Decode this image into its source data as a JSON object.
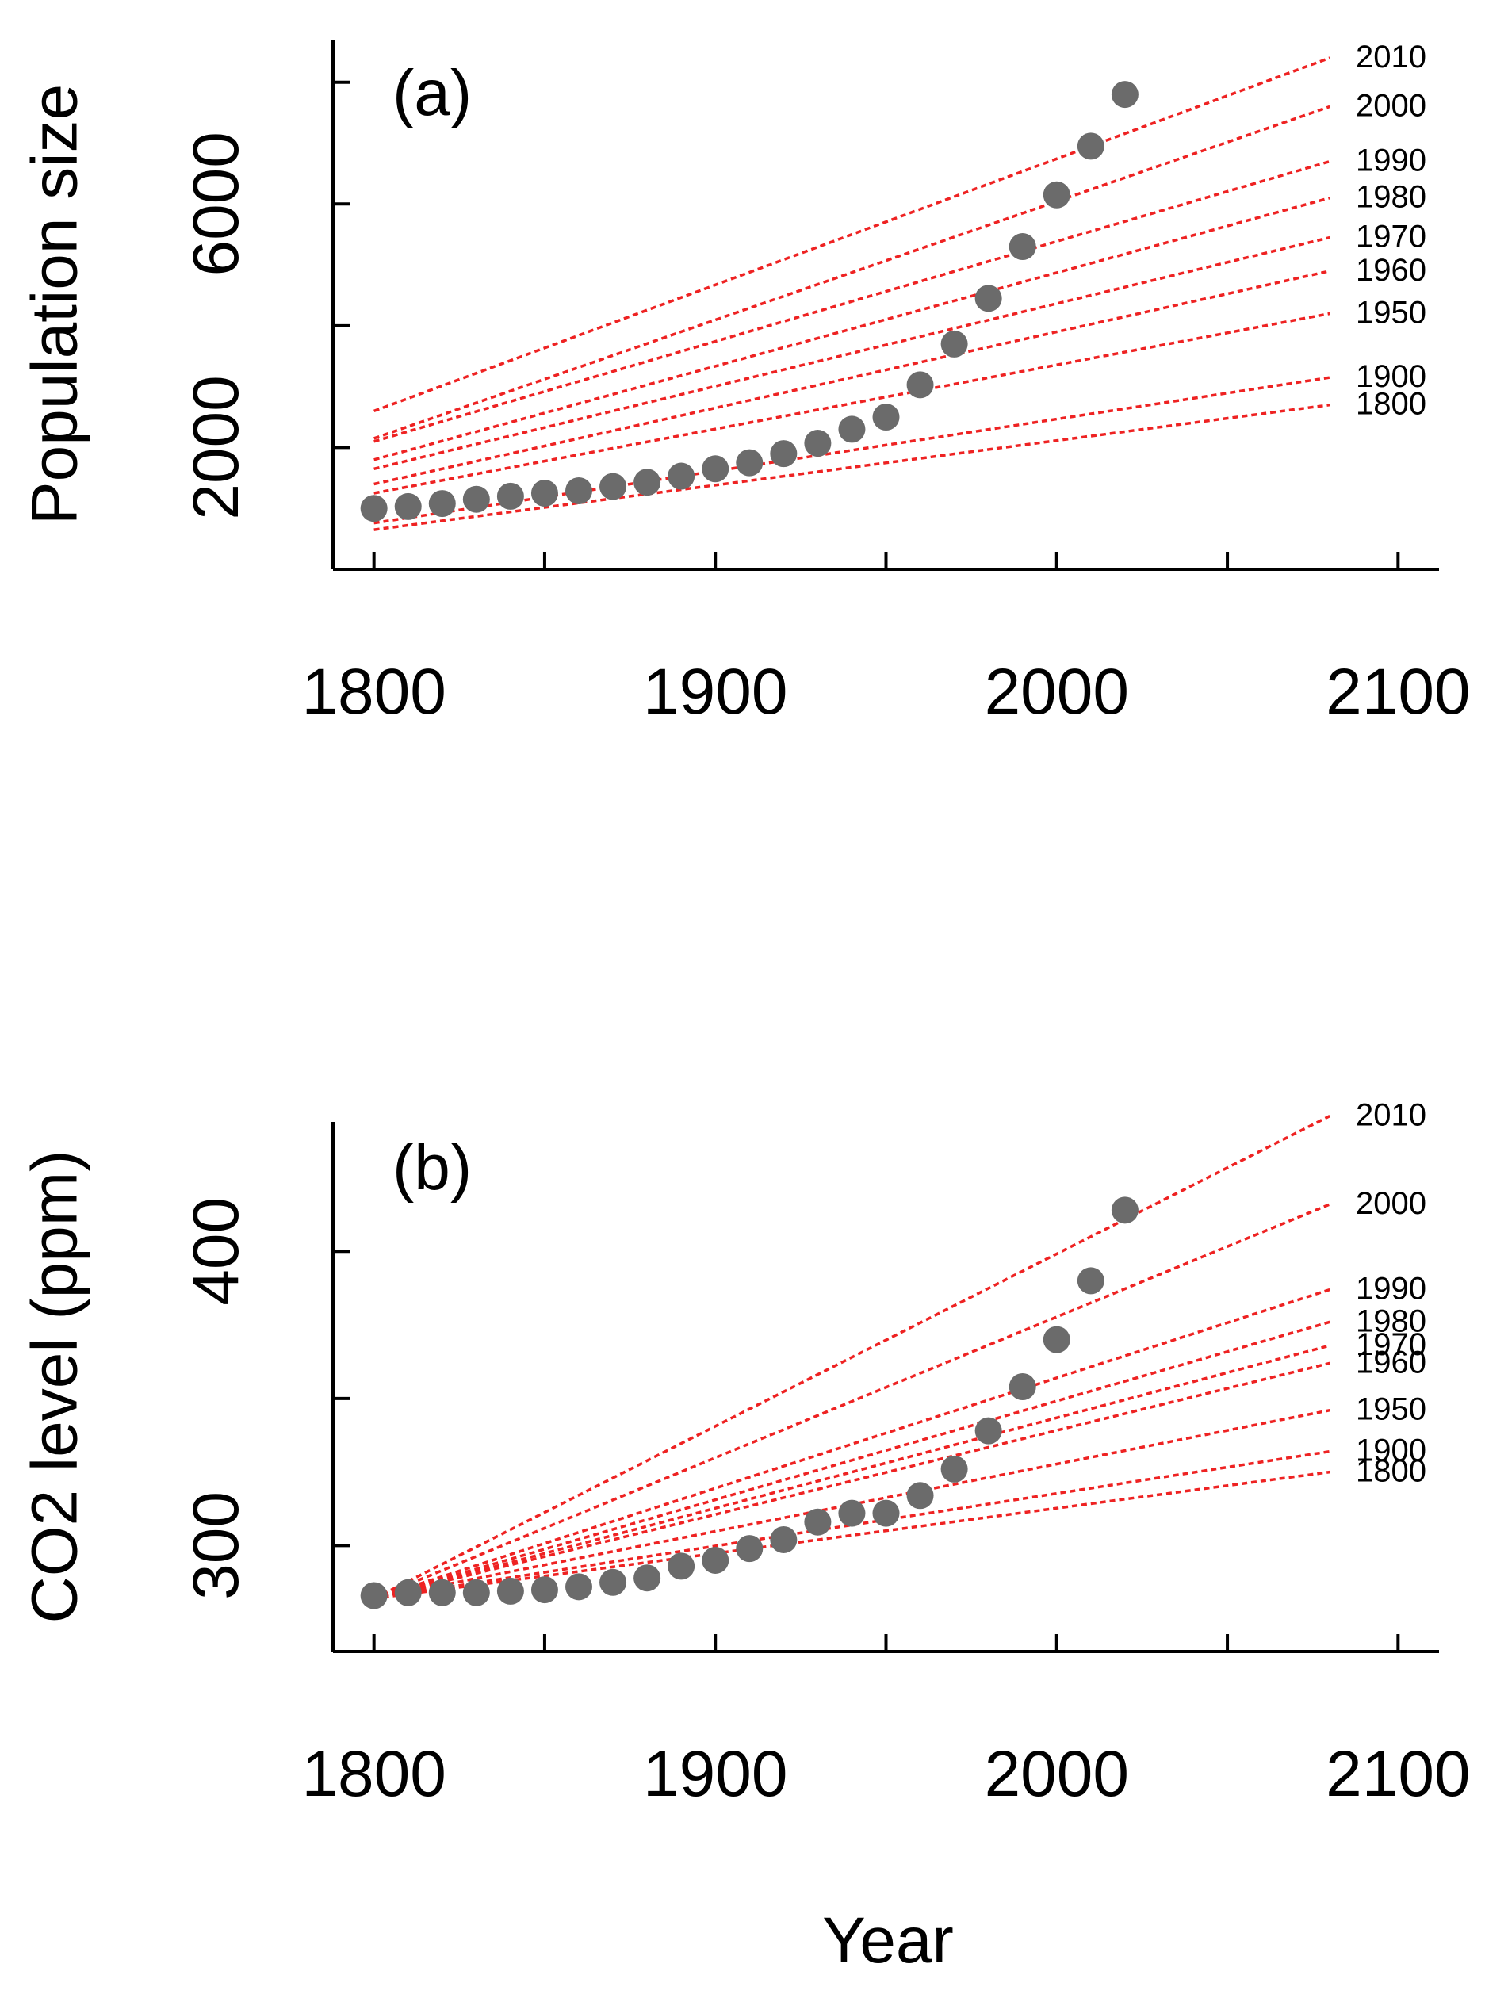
{
  "colors": {
    "points": "#6b6b6b",
    "projections": "#ee2222",
    "axes": "#000000"
  },
  "xlabel": "Year",
  "chart_data": [
    {
      "type": "scatter",
      "panel_label": "(a)",
      "ylabel": "Population size",
      "xlim": [
        1788,
        2112
      ],
      "ylim": [
        0,
        8700
      ],
      "x_ticks": [
        1800,
        1900,
        2000,
        2100
      ],
      "x_minor_ticks": [
        1850,
        1950,
        2050
      ],
      "y_ticks": [
        2000,
        4000,
        6000,
        8000
      ],
      "y_tick_labels": [
        "2000",
        "",
        "6000",
        ""
      ],
      "points": {
        "x": [
          1800,
          1810,
          1820,
          1830,
          1840,
          1850,
          1860,
          1870,
          1880,
          1890,
          1900,
          1910,
          1920,
          1930,
          1940,
          1950,
          1960,
          1970,
          1980,
          1990,
          2000,
          2010,
          2020
        ],
        "y": [
          1000,
          1030,
          1080,
          1150,
          1200,
          1250,
          1290,
          1360,
          1430,
          1530,
          1650,
          1750,
          1900,
          2070,
          2300,
          2500,
          3030,
          3700,
          4450,
          5300,
          6150,
          6950,
          7800
        ]
      },
      "projections": [
        {
          "name": "1800",
          "x0": 1800,
          "y0": 650,
          "x1": 2080,
          "y1": 2700
        },
        {
          "name": "1900",
          "x0": 1800,
          "y0": 760,
          "x1": 2080,
          "y1": 3150
        },
        {
          "name": "1950",
          "x0": 1800,
          "y0": 1250,
          "x1": 2080,
          "y1": 4200
        },
        {
          "name": "1960",
          "x0": 1800,
          "y0": 1400,
          "x1": 2080,
          "y1": 4900
        },
        {
          "name": "1970",
          "x0": 1800,
          "y0": 1650,
          "x1": 2080,
          "y1": 5450
        },
        {
          "name": "1980",
          "x0": 1800,
          "y0": 1800,
          "x1": 2080,
          "y1": 6100
        },
        {
          "name": "1990",
          "x0": 1800,
          "y0": 2100,
          "x1": 2080,
          "y1": 6700
        },
        {
          "name": "2000",
          "x0": 1800,
          "y0": 2150,
          "x1": 2080,
          "y1": 7600
        },
        {
          "name": "2010",
          "x0": 1800,
          "y0": 2600,
          "x1": 2080,
          "y1": 8400
        }
      ]
    },
    {
      "type": "scatter",
      "panel_label": "(b)",
      "ylabel": "CO2 level (ppm)",
      "xlim": [
        1788,
        2112
      ],
      "ylim": [
        264,
        444
      ],
      "x_ticks": [
        1800,
        1900,
        2000,
        2100
      ],
      "x_minor_ticks": [
        1850,
        1950,
        2050
      ],
      "y_ticks": [
        300,
        350,
        400
      ],
      "y_tick_labels": [
        "300",
        "",
        "400"
      ],
      "points": {
        "x": [
          1800,
          1810,
          1820,
          1830,
          1840,
          1850,
          1860,
          1870,
          1880,
          1890,
          1900,
          1910,
          1920,
          1930,
          1940,
          1950,
          1960,
          1970,
          1980,
          1990,
          2000,
          2010,
          2020
        ],
        "y": [
          283,
          284,
          284,
          284,
          284.5,
          285,
          286,
          287.5,
          289,
          293,
          295,
          299,
          302,
          308,
          311,
          311,
          317,
          326,
          339,
          354,
          370,
          390,
          414
        ]
      },
      "projections": [
        {
          "name": "1800",
          "x0": 1800,
          "y0": 282,
          "x1": 2080,
          "y1": 325
        },
        {
          "name": "1900",
          "x0": 1800,
          "y0": 282,
          "x1": 2080,
          "y1": 332
        },
        {
          "name": "1950",
          "x0": 1800,
          "y0": 282,
          "x1": 2080,
          "y1": 346
        },
        {
          "name": "1960",
          "x0": 1800,
          "y0": 282,
          "x1": 2080,
          "y1": 362
        },
        {
          "name": "1970",
          "x0": 1800,
          "y0": 282,
          "x1": 2080,
          "y1": 368
        },
        {
          "name": "1980",
          "x0": 1800,
          "y0": 282,
          "x1": 2080,
          "y1": 376
        },
        {
          "name": "1990",
          "x0": 1800,
          "y0": 282,
          "x1": 2080,
          "y1": 387
        },
        {
          "name": "2000",
          "x0": 1800,
          "y0": 282,
          "x1": 2080,
          "y1": 416
        },
        {
          "name": "2010",
          "x0": 1800,
          "y0": 282,
          "x1": 2080,
          "y1": 446
        }
      ]
    }
  ]
}
